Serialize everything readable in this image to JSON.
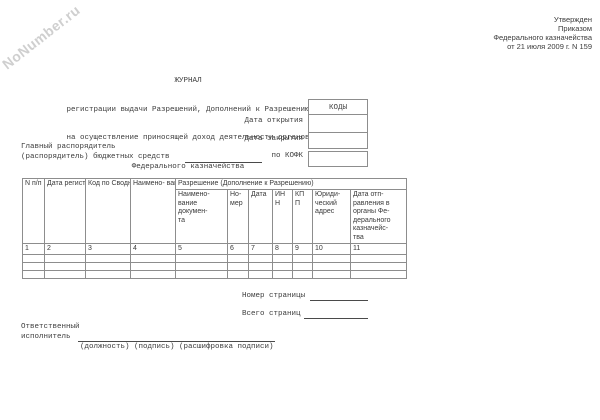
{
  "watermark": {
    "text": "NoNumber.ru"
  },
  "approval": {
    "lines": [
      "Утвержден",
      "Приказом",
      "Федерального казначейства",
      "от 21 июля 2009 г. N 159"
    ]
  },
  "title": {
    "lines": [
      "ЖУРНАЛ",
      "регистрации выдачи Разрешений, Дополнений к Разрешению",
      "на осуществление приносящей доход деятельности органов",
      "Федерального казначейства"
    ]
  },
  "codes": {
    "header": "КОДЫ",
    "labels": [
      "Дата открытия",
      "Дата закрытия",
      "по КОФК"
    ]
  },
  "grantor": {
    "line1": "Главный распорядитель",
    "line2": "(распорядитель) бюджетных средств"
  },
  "table": {
    "group_header": "Разрешение (Дополнение к Разрешению)",
    "columns": [
      "N\nп/п",
      "Дата\nрегист-\nрации\nдоку-\nмента",
      "Код по\nСводному\nреестру",
      "Наимено-\nвание\nраспоря-\nдителя\n(получа-\nтеля)",
      "Наимено-\nвание\nдокумен-\nта",
      "Но-\nмер",
      "Дата",
      "ИН\nН",
      "КП\nП",
      "Юриди-\nческий\nадрес",
      "Дата отп-\nравления в\nорганы Фе-\nдерального\nказначейс-\nтва"
    ],
    "col_numbers": [
      "1",
      "2",
      "3",
      "4",
      "5",
      "6",
      "7",
      "8",
      "9",
      "10",
      "11"
    ],
    "empty_rows": 3
  },
  "pagination": {
    "page_label": "Номер страницы",
    "total_label": "Всего страниц"
  },
  "executor": {
    "line1": "Ответственный",
    "line2": "исполнитель",
    "caption": "(должность) (подпись) (расшифровка подписи)"
  },
  "colors": {
    "text": "#3c3c3c",
    "table_border": "#8d8d8d",
    "watermark": "#cfcfcf"
  }
}
